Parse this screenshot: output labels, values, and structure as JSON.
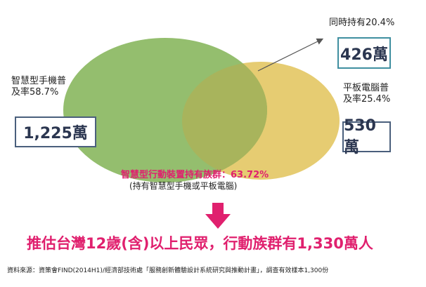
{
  "venn": {
    "smartphone_label_line1": "智慧型手機普",
    "smartphone_label_line2": "及率58.7%",
    "smartphone_value": "1,225萬",
    "tablet_label_line1": "平板電腦普",
    "tablet_label_line2": "及率25.4%",
    "tablet_value": "530萬",
    "both_label": "同時持有20.4%",
    "both_value": "426萬",
    "colors": {
      "smartphone_circle": "#94be6e",
      "tablet_circle": "#e6cc72",
      "overlap": "#a8b45c",
      "box_border": "#4a5f7c",
      "accent_pink": "#e0206e"
    }
  },
  "summary": {
    "ownership_line": "智慧型行動裝置持有族群：63.72%",
    "ownership_note": "(持有智慧型手機或平板電腦)"
  },
  "arrow_icon": "down-arrow-icon",
  "headline": "推估台灣12歲(含)以上民眾，行動族群有1,330萬人",
  "source": "資料來源：資策會FIND(2014H1)/經濟部技術處「服務創新體驗設計系統研究與推動計畫」，調查有效樣本1,300份"
}
